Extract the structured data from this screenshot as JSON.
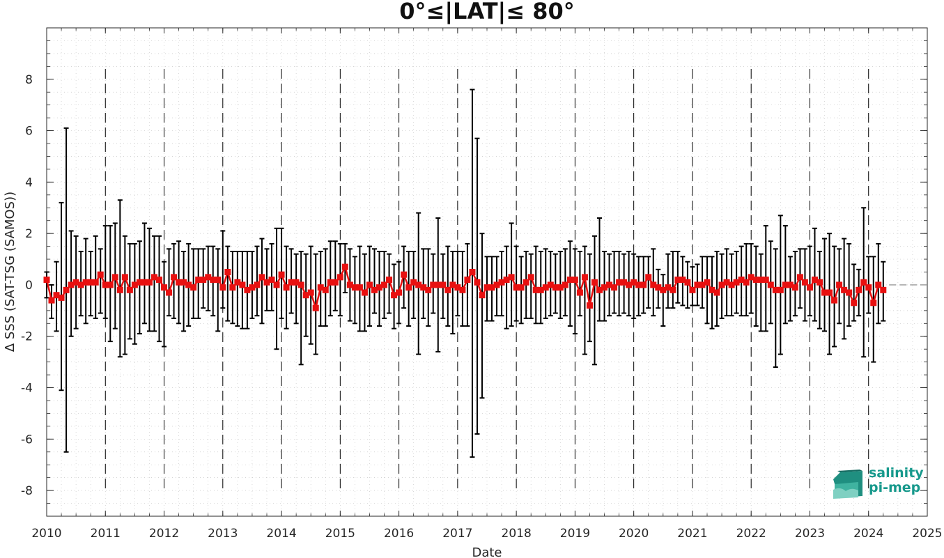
{
  "chart_data": {
    "type": "line",
    "title": "0°≤|LAT|≤ 80°",
    "xlabel": "Date",
    "ylabel": "Δ SSS (SAT-TSG (SAMOS))",
    "xlim": [
      2010,
      2025
    ],
    "ylim": [
      -9,
      10
    ],
    "xticks": [
      "2010",
      "2011",
      "2012",
      "2013",
      "2014",
      "2015",
      "2016",
      "2017",
      "2018",
      "2019",
      "2020",
      "2021",
      "2022",
      "2023",
      "2024",
      "2025"
    ],
    "yticks": [
      "-8",
      "-6",
      "-4",
      "-2",
      "0",
      "2",
      "4",
      "6",
      "8"
    ],
    "grid": "minor dotted",
    "year_separators": "dashed vertical lines at each January",
    "zero_reference_line": "dashed gray at 0 beyond last point",
    "colors": {
      "series": "#e81010",
      "errorbar": "#000000",
      "logo": "#17998c"
    },
    "series": [
      {
        "x": [
          "2010-01",
          "2010-02",
          "2010-03",
          "2010-04",
          "2010-05",
          "2010-06",
          "2010-07",
          "2010-08",
          "2010-09",
          "2010-10",
          "2010-11",
          "2010-12",
          "2011-01",
          "2011-02",
          "2011-03",
          "2011-04",
          "2011-05",
          "2011-06",
          "2011-07",
          "2011-08",
          "2011-09",
          "2011-10",
          "2011-11",
          "2011-12",
          "2012-01",
          "2012-02",
          "2012-03",
          "2012-04",
          "2012-05",
          "2012-06",
          "2012-07",
          "2012-08",
          "2012-09",
          "2012-10",
          "2012-11",
          "2012-12",
          "2013-01",
          "2013-02",
          "2013-03",
          "2013-04",
          "2013-05",
          "2013-06",
          "2013-07",
          "2013-08",
          "2013-09",
          "2013-10",
          "2013-11",
          "2013-12",
          "2014-01",
          "2014-02",
          "2014-03",
          "2014-04",
          "2014-05",
          "2014-06",
          "2014-07",
          "2014-08",
          "2014-09",
          "2014-10",
          "2014-11",
          "2014-12",
          "2015-01",
          "2015-02",
          "2015-03",
          "2015-04",
          "2015-05",
          "2015-06",
          "2015-07",
          "2015-08",
          "2015-09",
          "2015-10",
          "2015-11",
          "2015-12",
          "2016-01",
          "2016-02",
          "2016-03",
          "2016-04",
          "2016-05",
          "2016-06",
          "2016-07",
          "2016-08",
          "2016-09",
          "2016-10",
          "2016-11",
          "2016-12",
          "2017-01",
          "2017-02",
          "2017-03",
          "2017-04",
          "2017-05",
          "2017-06",
          "2017-07",
          "2017-08",
          "2017-09",
          "2017-10",
          "2017-11",
          "2017-12",
          "2018-01",
          "2018-02",
          "2018-03",
          "2018-04",
          "2018-05",
          "2018-06",
          "2018-07",
          "2018-08",
          "2018-09",
          "2018-10",
          "2018-11",
          "2018-12",
          "2019-01",
          "2019-02",
          "2019-03",
          "2019-04",
          "2019-05",
          "2019-06",
          "2019-07",
          "2019-08",
          "2019-09",
          "2019-10",
          "2019-11",
          "2019-12",
          "2020-01",
          "2020-02",
          "2020-03",
          "2020-04",
          "2020-05",
          "2020-06",
          "2020-07",
          "2020-08",
          "2020-09",
          "2020-10",
          "2020-11",
          "2020-12",
          "2021-01",
          "2021-02",
          "2021-03",
          "2021-04",
          "2021-05",
          "2021-06",
          "2021-07",
          "2021-08",
          "2021-09",
          "2021-10",
          "2021-11",
          "2021-12",
          "2022-01",
          "2022-02",
          "2022-03",
          "2022-04",
          "2022-05",
          "2022-06",
          "2022-07",
          "2022-08",
          "2022-09",
          "2022-10",
          "2022-11",
          "2022-12",
          "2023-01",
          "2023-02",
          "2023-03",
          "2023-04",
          "2023-05",
          "2023-06",
          "2023-07",
          "2023-08",
          "2023-09",
          "2023-10",
          "2023-11",
          "2023-12",
          "2024-01",
          "2024-02",
          "2024-03",
          "2024-04"
        ],
        "y": [
          0.2,
          -0.6,
          -0.4,
          -0.5,
          -0.2,
          0.0,
          0.1,
          0.0,
          0.1,
          0.1,
          0.1,
          0.4,
          0.0,
          0.0,
          0.3,
          -0.2,
          0.3,
          -0.2,
          0.0,
          0.1,
          0.1,
          0.1,
          0.3,
          0.2,
          -0.1,
          -0.3,
          0.3,
          0.1,
          0.1,
          0.0,
          -0.1,
          0.2,
          0.2,
          0.3,
          0.2,
          0.2,
          -0.1,
          0.5,
          -0.1,
          0.1,
          0.0,
          -0.2,
          -0.1,
          0.0,
          0.3,
          0.1,
          0.2,
          0.0,
          0.4,
          -0.1,
          0.1,
          0.1,
          0.0,
          -0.4,
          -0.3,
          -0.9,
          -0.1,
          -0.2,
          0.1,
          0.1,
          0.3,
          0.7,
          0.0,
          -0.1,
          -0.1,
          -0.3,
          0.0,
          -0.2,
          -0.1,
          0.0,
          0.2,
          -0.4,
          -0.3,
          0.4,
          -0.1,
          0.1,
          0.0,
          -0.1,
          -0.2,
          0.0,
          0.0,
          0.0,
          -0.2,
          0.0,
          -0.1,
          -0.2,
          0.2,
          0.5,
          0.1,
          -0.4,
          -0.1,
          -0.1,
          0.0,
          0.1,
          0.2,
          0.3,
          -0.1,
          -0.1,
          0.1,
          0.3,
          -0.2,
          -0.2,
          -0.1,
          0.0,
          -0.1,
          -0.1,
          0.0,
          0.2,
          0.2,
          -0.3,
          0.3,
          -0.8,
          0.1,
          -0.2,
          -0.1,
          0.0,
          -0.1,
          0.1,
          0.1,
          0.0,
          0.1,
          0.0,
          0.0,
          0.3,
          0.0,
          -0.1,
          -0.2,
          -0.1,
          -0.2,
          0.2,
          0.2,
          0.1,
          -0.2,
          0.0,
          0.0,
          0.1,
          -0.2,
          -0.3,
          0.0,
          0.1,
          0.0,
          0.1,
          0.2,
          0.1,
          0.3,
          0.2,
          0.2,
          0.2,
          0.0,
          -0.2,
          -0.2,
          0.0,
          0.0,
          -0.1,
          0.3,
          0.1,
          -0.1,
          0.2,
          0.1,
          -0.3,
          -0.3,
          -0.6,
          0.0,
          -0.2,
          -0.3,
          -0.7,
          -0.2,
          0.1,
          -0.1,
          -0.7,
          0.0,
          -0.2
        ],
        "err_low": [
          -0.5,
          -1.3,
          -1.8,
          -4.1,
          -6.5,
          -2.0,
          -1.7,
          -1.2,
          -1.5,
          -1.2,
          -1.3,
          -1.1,
          -1.3,
          -2.2,
          -1.7,
          -2.8,
          -2.7,
          -2.1,
          -2.3,
          -1.9,
          -1.5,
          -1.8,
          -1.8,
          -2.2,
          -2.4,
          -1.2,
          -1.3,
          -1.5,
          -1.8,
          -1.6,
          -1.3,
          -1.3,
          -0.9,
          -1.0,
          -1.2,
          -1.8,
          -0.9,
          -1.4,
          -1.5,
          -1.6,
          -1.7,
          -1.7,
          -1.3,
          -1.2,
          -1.5,
          -1.0,
          -1.0,
          -2.5,
          -1.3,
          -1.7,
          -1.1,
          -1.5,
          -3.1,
          -2.0,
          -2.3,
          -2.7,
          -1.6,
          -1.6,
          -1.2,
          -1.0,
          -1.2,
          -0.3,
          -1.4,
          -1.5,
          -1.8,
          -1.8,
          -1.6,
          -1.1,
          -1.6,
          -1.3,
          -1.1,
          -1.7,
          -1.5,
          -0.9,
          -1.6,
          -1.3,
          -2.7,
          -1.3,
          -1.6,
          -1.1,
          -2.6,
          -1.3,
          -1.6,
          -1.9,
          -1.2,
          -1.6,
          -1.6,
          -6.7,
          -5.8,
          -4.4,
          -1.4,
          -1.4,
          -1.2,
          -1.2,
          -1.7,
          -1.6,
          -1.4,
          -1.5,
          -1.3,
          -1.3,
          -1.5,
          -1.5,
          -1.3,
          -1.2,
          -1.1,
          -1.3,
          -1.2,
          -1.6,
          -1.9,
          -1.2,
          -2.7,
          -2.2,
          -3.1,
          -1.4,
          -1.4,
          -1.2,
          -1.1,
          -1.2,
          -1.1,
          -1.2,
          -1.3,
          -1.2,
          -1.1,
          -0.9,
          -1.2,
          -0.9,
          -1.6,
          -0.9,
          -0.9,
          -0.7,
          -0.8,
          -0.9,
          -0.8,
          -0.8,
          -0.9,
          -1.5,
          -1.7,
          -1.6,
          -1.3,
          -1.2,
          -1.2,
          -1.1,
          -1.2,
          -1.2,
          -1.1,
          -1.6,
          -1.8,
          -1.8,
          -1.5,
          -3.2,
          -2.7,
          -1.5,
          -1.4,
          -1.2,
          -0.9,
          -1.4,
          -1.2,
          -1.4,
          -1.7,
          -1.8,
          -2.7,
          -2.4,
          -1.5,
          -2.1,
          -1.6,
          -1.4,
          -1.2,
          -2.8,
          -1.1,
          -3.0,
          -1.5,
          -1.4
        ],
        "err_high": [
          0.5,
          0.0,
          0.9,
          3.2,
          6.1,
          2.1,
          1.9,
          1.3,
          1.8,
          1.3,
          1.9,
          1.4,
          2.3,
          2.3,
          2.4,
          3.3,
          1.9,
          1.6,
          1.6,
          1.7,
          2.4,
          2.2,
          1.9,
          1.9,
          0.9,
          1.4,
          1.6,
          1.7,
          1.3,
          1.6,
          1.4,
          1.4,
          1.4,
          1.5,
          1.5,
          1.4,
          2.1,
          1.5,
          1.3,
          1.3,
          1.3,
          1.3,
          1.3,
          1.5,
          1.8,
          1.4,
          1.6,
          2.2,
          2.2,
          1.5,
          1.4,
          1.2,
          1.3,
          1.2,
          1.5,
          1.2,
          1.3,
          1.4,
          1.7,
          1.7,
          1.6,
          1.6,
          1.4,
          1.1,
          1.5,
          1.2,
          1.5,
          1.4,
          1.3,
          1.3,
          1.2,
          0.8,
          0.9,
          1.5,
          1.3,
          1.3,
          2.8,
          1.4,
          1.4,
          1.2,
          2.6,
          1.2,
          1.5,
          1.3,
          1.3,
          1.3,
          1.6,
          7.6,
          5.7,
          2.0,
          1.1,
          1.1,
          1.1,
          1.3,
          1.5,
          2.4,
          1.5,
          1.1,
          1.3,
          1.2,
          1.5,
          1.3,
          1.4,
          1.3,
          1.2,
          1.3,
          1.4,
          1.7,
          1.4,
          1.3,
          1.5,
          1.2,
          1.9,
          2.6,
          1.3,
          1.2,
          1.3,
          1.3,
          1.2,
          1.3,
          1.2,
          1.1,
          1.1,
          1.1,
          1.4,
          0.6,
          0.4,
          1.2,
          1.3,
          1.3,
          1.1,
          0.9,
          0.7,
          0.8,
          1.1,
          1.1,
          1.1,
          1.3,
          1.2,
          1.4,
          1.2,
          1.3,
          1.5,
          1.6,
          1.6,
          1.5,
          1.2,
          2.3,
          1.7,
          1.4,
          2.7,
          2.3,
          1.1,
          1.3,
          1.4,
          1.4,
          1.5,
          2.2,
          1.3,
          1.8,
          2.0,
          1.5,
          1.4,
          1.8,
          1.6,
          0.8,
          0.6,
          3.0,
          1.1,
          1.1,
          1.6,
          0.9
        ]
      }
    ]
  },
  "logo": {
    "line1": "salinity",
    "line2": "pi-mep"
  }
}
